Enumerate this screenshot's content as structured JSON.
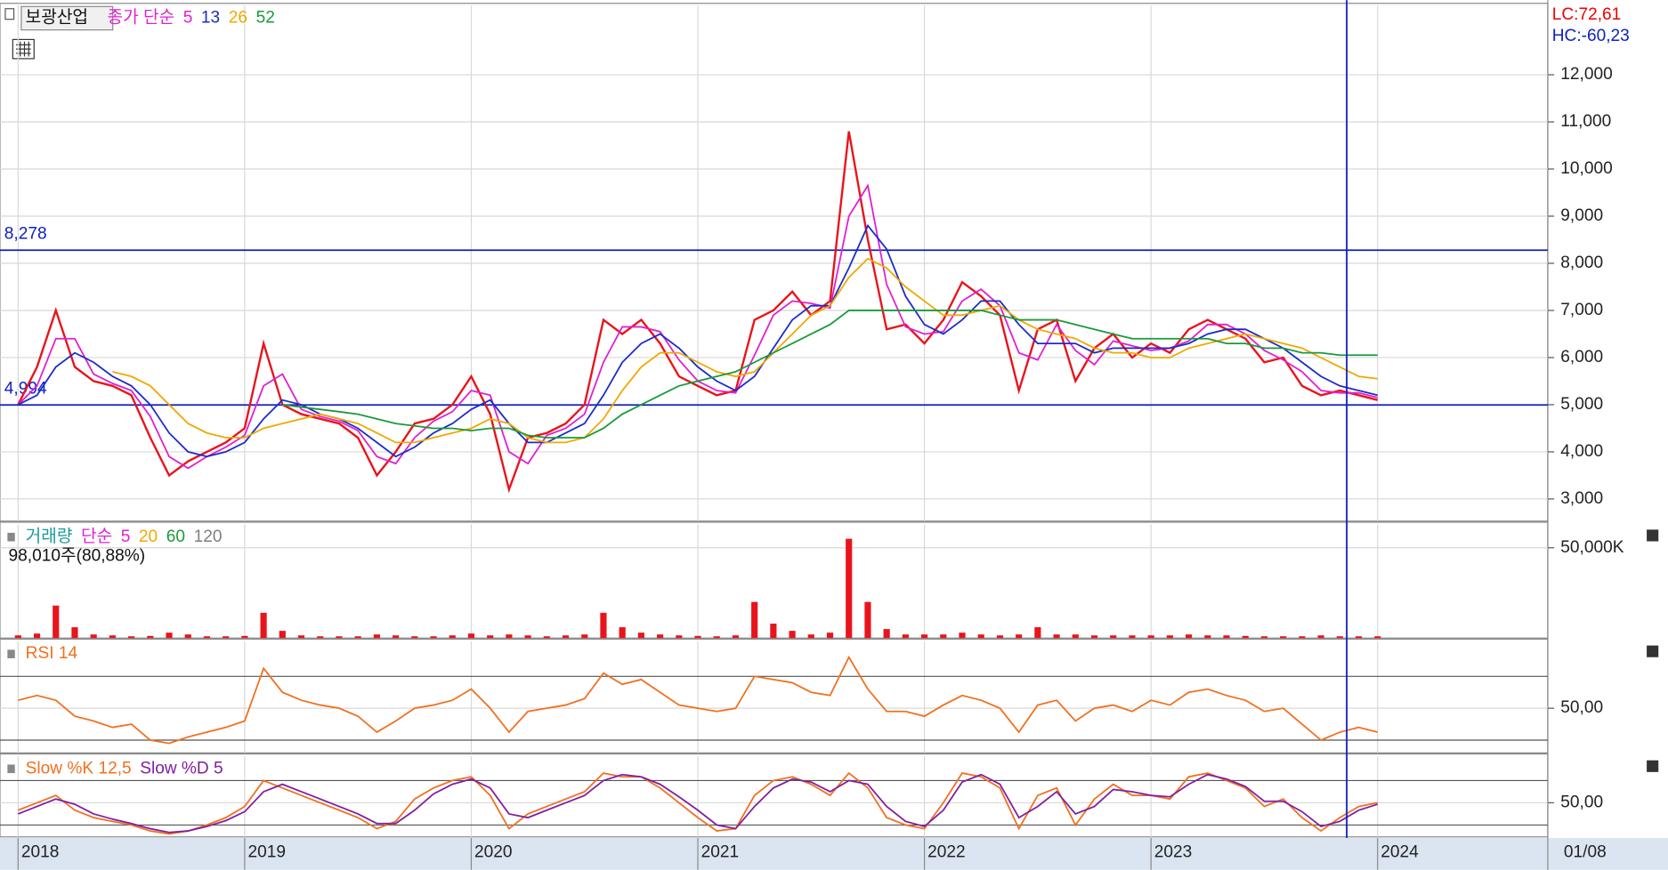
{
  "chart_data": [
    {
      "type": "line",
      "title": "보광산업",
      "subtitle": "종가 단순",
      "categories": [
        "2018",
        null,
        null,
        null,
        null,
        null,
        null,
        null,
        null,
        null,
        null,
        null,
        "2019",
        null,
        null,
        null,
        null,
        null,
        null,
        null,
        null,
        null,
        null,
        null,
        "2020",
        null,
        null,
        null,
        null,
        null,
        null,
        null,
        null,
        null,
        null,
        null,
        "2021",
        null,
        null,
        null,
        null,
        null,
        null,
        null,
        null,
        null,
        null,
        null,
        "2022",
        null,
        null,
        null,
        null,
        null,
        null,
        null,
        null,
        null,
        null,
        null,
        "2023",
        null,
        null,
        null,
        null,
        null,
        null,
        null,
        null,
        null,
        null,
        null,
        "2024"
      ],
      "series": [
        {
          "color": "#e8141c",
          "values": [
            5000,
            5800,
            7000,
            5800,
            5500,
            5400,
            5200,
            4300,
            3500,
            3800,
            4000,
            4200,
            4500,
            6300,
            5000,
            4800,
            4700,
            4600,
            4300,
            3500,
            4000,
            4600,
            4700,
            5000,
            5600,
            4800,
            3200,
            4300,
            4400,
            4600,
            5000,
            6800,
            6500,
            6800,
            6300,
            5600,
            5400,
            5200,
            5300,
            6800,
            7000,
            7400,
            6900,
            7200,
            10800,
            8500,
            6600,
            6700,
            6300,
            6800,
            7600,
            7300,
            6900,
            5300,
            6600,
            6800,
            5500,
            6200,
            6500,
            6000,
            6300,
            6100,
            6600,
            6800,
            6600,
            6400,
            5900,
            6000,
            5400,
            5200,
            5300,
            5200,
            5100
          ]
        },
        {
          "name": "5",
          "color": "#e020d0",
          "values": [
            5000,
            5400,
            6400,
            6400,
            5650,
            5450,
            5300,
            4750,
            3900,
            3650,
            3900,
            4100,
            4350,
            5400,
            5650,
            4900,
            4750,
            4650,
            4450,
            3900,
            3750,
            4300,
            4650,
            4850,
            5300,
            5200,
            4000,
            3750,
            4350,
            4500,
            4800,
            5900,
            6650,
            6650,
            6550,
            5950,
            5500,
            5300,
            5250,
            6050,
            6900,
            7200,
            7150,
            7050,
            9000,
            9650,
            7550,
            6650,
            6500,
            6550,
            7200,
            7450,
            7100,
            6100,
            5950,
            6700,
            6150,
            5850,
            6350,
            6250,
            6150,
            6200,
            6350,
            6700,
            6700,
            6500,
            6150,
            5950,
            5700,
            5300,
            5250,
            5250,
            5150
          ]
        },
        {
          "name": "13",
          "color": "#1c2cc8",
          "values": [
            5000,
            5200,
            5800,
            6100,
            5900,
            5600,
            5400,
            5000,
            4400,
            4000,
            3900,
            4000,
            4200,
            4700,
            5100,
            5000,
            4800,
            4700,
            4500,
            4200,
            3900,
            4100,
            4400,
            4600,
            4900,
            5100,
            4600,
            4200,
            4200,
            4400,
            4600,
            5200,
            5900,
            6300,
            6500,
            6200,
            5800,
            5500,
            5300,
            5600,
            6200,
            6800,
            7100,
            7100,
            7900,
            8800,
            8300,
            7300,
            6700,
            6500,
            6800,
            7200,
            7200,
            6700,
            6300,
            6300,
            6300,
            6100,
            6200,
            6200,
            6200,
            6200,
            6300,
            6500,
            6600,
            6600,
            6400,
            6200,
            5900,
            5600,
            5400,
            5300,
            5200
          ]
        },
        {
          "name": "26",
          "color": "#f0a800",
          "values": [
            null,
            null,
            null,
            null,
            null,
            5700,
            5600,
            5400,
            5000,
            4600,
            4400,
            4300,
            4300,
            4500,
            4600,
            4700,
            4800,
            4700,
            4600,
            4400,
            4200,
            4200,
            4300,
            4400,
            4500,
            4700,
            4600,
            4300,
            4200,
            4200,
            4300,
            4700,
            5300,
            5800,
            6100,
            6100,
            5900,
            5700,
            5600,
            5700,
            6100,
            6500,
            6900,
            7100,
            7700,
            8100,
            7900,
            7500,
            7200,
            6900,
            6900,
            7000,
            7100,
            6800,
            6600,
            6500,
            6400,
            6200,
            6100,
            6100,
            6000,
            6000,
            6200,
            6300,
            6400,
            6500,
            6400,
            6300,
            6200,
            6000,
            5800,
            5600,
            5550
          ]
        },
        {
          "name": "52",
          "color": "#1a9a3a",
          "values": [
            null,
            null,
            null,
            null,
            null,
            null,
            null,
            null,
            null,
            null,
            null,
            null,
            null,
            null,
            5000,
            4950,
            4900,
            4850,
            4800,
            4700,
            4600,
            4550,
            4500,
            4500,
            4450,
            4500,
            4500,
            4350,
            4300,
            4300,
            4300,
            4500,
            4800,
            5000,
            5200,
            5400,
            5500,
            5600,
            5700,
            5900,
            6100,
            6300,
            6500,
            6700,
            7000,
            7000,
            7000,
            7000,
            7000,
            7000,
            7000,
            7000,
            6900,
            6800,
            6800,
            6800,
            6700,
            6600,
            6500,
            6400,
            6400,
            6400,
            6400,
            6400,
            6300,
            6300,
            6200,
            6200,
            6100,
            6100,
            6050,
            6050,
            6050
          ]
        }
      ],
      "ylim": [
        2530,
        13470
      ],
      "yticks": [
        {
          "value": 3000,
          "label": "3,000"
        },
        {
          "value": 4000,
          "label": "4,000"
        },
        {
          "value": 5000,
          "label": "5,000"
        },
        {
          "value": 6000,
          "label": "6,000"
        },
        {
          "value": 7000,
          "label": "7,000"
        },
        {
          "value": 8000,
          "label": "8,000"
        },
        {
          "value": 9000,
          "label": "9,000"
        },
        {
          "value": 10000,
          "label": "10,000"
        },
        {
          "value": 11000,
          "label": "11,000"
        },
        {
          "value": 12000,
          "label": "12,000"
        }
      ],
      "hlines": [
        {
          "value": 8278,
          "label": "8,278"
        },
        {
          "value": 4994,
          "label": "4,994"
        }
      ],
      "lc_label": "LC:72,61",
      "hc_label": "HC:-60,23",
      "date_label": "01/08",
      "grid": true
    },
    {
      "type": "bar",
      "title": "거래량",
      "subtitle": "단순",
      "ma_periods": [
        {
          "label": "5",
          "color": "#e020d0"
        },
        {
          "label": "20",
          "color": "#f0a800"
        },
        {
          "label": "60",
          "color": "#1a9a3a"
        },
        {
          "label": "120",
          "color": "#808080"
        }
      ],
      "note": "98,010주(80,88%)",
      "color": "#e8141c",
      "values": [
        1500,
        2500,
        18000,
        6000,
        2000,
        1500,
        1000,
        1200,
        3000,
        2000,
        1000,
        1000,
        1200,
        14000,
        4000,
        1500,
        1000,
        1000,
        1000,
        2000,
        1500,
        1000,
        1000,
        1500,
        2500,
        1500,
        2000,
        1500,
        1000,
        1500,
        2000,
        14000,
        6000,
        3000,
        2000,
        1500,
        1200,
        1000,
        1500,
        20000,
        8000,
        4000,
        2000,
        3000,
        55000,
        20000,
        5000,
        2000,
        2000,
        2000,
        3000,
        2000,
        1500,
        2000,
        6000,
        2000,
        2000,
        1500,
        1500,
        1500,
        1500,
        1500,
        2000,
        1500,
        1500,
        1200,
        1000,
        1000,
        1000,
        1500,
        1000,
        1000,
        1000
      ],
      "ylim": [
        0,
        63000
      ],
      "yticks": [
        {
          "value": 50000,
          "label": "50,000K"
        }
      ]
    },
    {
      "type": "line",
      "title": "RSI 14",
      "series": [
        {
          "color": "#f07020",
          "values": [
            55,
            58,
            55,
            45,
            42,
            38,
            40,
            30,
            28,
            32,
            35,
            38,
            42,
            75,
            60,
            55,
            52,
            50,
            45,
            35,
            42,
            50,
            52,
            55,
            62,
            50,
            35,
            48,
            50,
            52,
            56,
            72,
            65,
            68,
            60,
            52,
            50,
            48,
            50,
            70,
            68,
            66,
            60,
            58,
            82,
            62,
            48,
            48,
            45,
            52,
            58,
            55,
            50,
            35,
            52,
            55,
            42,
            50,
            52,
            48,
            55,
            52,
            60,
            62,
            58,
            55,
            48,
            50,
            40,
            30,
            35,
            38,
            35
          ]
        }
      ],
      "ylim": [
        22,
        92
      ],
      "yticks": [
        {
          "value": 50,
          "label": "50,00"
        }
      ],
      "levels": [
        70,
        30
      ]
    },
    {
      "type": "line",
      "series": [
        {
          "name": "Slow %K 12,5",
          "color": "#f07020",
          "values": [
            40,
            50,
            60,
            40,
            30,
            25,
            20,
            12,
            8,
            12,
            20,
            30,
            45,
            80,
            70,
            60,
            50,
            40,
            30,
            15,
            25,
            55,
            70,
            80,
            85,
            60,
            15,
            35,
            45,
            55,
            65,
            90,
            85,
            85,
            70,
            50,
            30,
            12,
            15,
            60,
            80,
            85,
            75,
            60,
            90,
            70,
            30,
            20,
            15,
            50,
            90,
            85,
            70,
            15,
            60,
            70,
            20,
            55,
            75,
            60,
            60,
            55,
            85,
            90,
            80,
            70,
            45,
            55,
            30,
            12,
            30,
            45,
            50
          ]
        },
        {
          "name": "Slow %D 5",
          "color": "#8020a0",
          "values": [
            35,
            45,
            55,
            48,
            35,
            28,
            22,
            15,
            10,
            12,
            18,
            26,
            38,
            65,
            75,
            65,
            55,
            45,
            35,
            22,
            22,
            40,
            62,
            75,
            82,
            70,
            35,
            30,
            40,
            50,
            60,
            80,
            88,
            85,
            75,
            58,
            40,
            20,
            15,
            45,
            70,
            82,
            78,
            65,
            80,
            75,
            45,
            25,
            18,
            40,
            78,
            88,
            75,
            30,
            45,
            65,
            35,
            45,
            68,
            65,
            60,
            58,
            75,
            88,
            82,
            72,
            52,
            52,
            38,
            18,
            25,
            40,
            48
          ]
        }
      ],
      "ylim": [
        4,
        113
      ],
      "yticks": [
        {
          "value": 50,
          "label": "50,00"
        }
      ],
      "levels": [
        80,
        20
      ]
    }
  ]
}
